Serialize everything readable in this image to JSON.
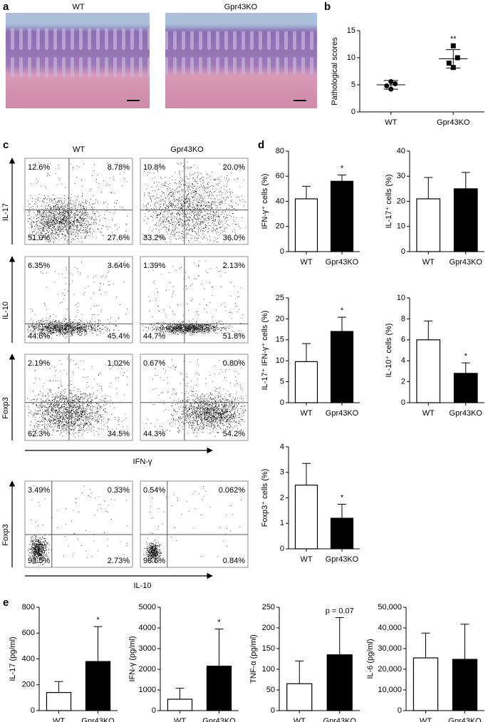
{
  "panel_labels": [
    "a",
    "b",
    "c",
    "d",
    "e"
  ],
  "histology": {
    "labels": [
      "WT",
      "Gpr43KO"
    ]
  },
  "flow": {
    "columns": [
      "WT",
      "Gpr43KO"
    ],
    "rows": [
      {
        "label": "IL-17",
        "quadrants": [
          [
            "12.6%",
            "8.78%",
            "51.0%",
            "27.6%"
          ],
          [
            "10.8%",
            "20.0%",
            "33.2%",
            "36.0%"
          ]
        ]
      },
      {
        "label": "IL-10",
        "quadrants": [
          [
            "6.35%",
            "3.64%",
            "44.6%",
            "45.4%"
          ],
          [
            "1.39%",
            "2.13%",
            "44.7%",
            "51.8%"
          ]
        ]
      },
      {
        "label": "Foxp3",
        "quadrants": [
          [
            "2.19%",
            "1.02%",
            "62.3%",
            "34.5%"
          ],
          [
            "0.67%",
            "0.80%",
            "44.3%",
            "54.2%"
          ]
        ]
      },
      {
        "label": "Foxp3",
        "quadrants": [
          [
            "3.49%",
            "0.33%",
            "93.5%",
            "2.73%"
          ],
          [
            "0.54%",
            "0.062%",
            "98.6%",
            "0.84%"
          ]
        ]
      }
    ],
    "x_axis_labels": [
      "IFN-γ",
      "IL-10"
    ]
  },
  "chart_data": [
    {
      "type": "dot",
      "y_label": "Pathological scores",
      "categories": [
        "WT",
        "Gpr43KO"
      ],
      "markers": [
        "circle",
        "square"
      ],
      "points": [
        [
          4.2,
          4.8,
          5.2,
          5.6
        ],
        [
          8.2,
          9,
          10,
          12.2
        ]
      ],
      "means": [
        5,
        9.8
      ],
      "errors": [
        0.8,
        1.7
      ],
      "ylim": [
        0,
        15
      ],
      "yticks": [
        0,
        5,
        10,
        15
      ],
      "annotation": "**"
    },
    {
      "type": "bar",
      "y_label": "IFN-γ⁺ cells (%)",
      "categories": [
        "WT",
        "Gpr43KO"
      ],
      "colors": [
        "#ffffff",
        "#000000"
      ],
      "values": [
        42,
        56
      ],
      "errors": [
        10,
        5
      ],
      "ylim": [
        0,
        80
      ],
      "yticks": [
        0,
        20,
        40,
        60,
        80
      ],
      "annotation": "*"
    },
    {
      "type": "bar",
      "y_label": "IL-17⁺ cells (%)",
      "categories": [
        "WT",
        "Gpr43KO"
      ],
      "colors": [
        "#ffffff",
        "#000000"
      ],
      "values": [
        21,
        25
      ],
      "errors": [
        8.5,
        6.5
      ],
      "ylim": [
        0,
        40
      ],
      "yticks": [
        0,
        10,
        20,
        30,
        40
      ]
    },
    {
      "type": "bar",
      "y_label": "IL-17⁺ IFN-γ⁺ cells (%)",
      "categories": [
        "WT",
        "Gpr43KO"
      ],
      "colors": [
        "#ffffff",
        "#000000"
      ],
      "values": [
        9.8,
        17
      ],
      "errors": [
        4.3,
        3.4
      ],
      "ylim": [
        0,
        25
      ],
      "yticks": [
        0,
        5,
        10,
        15,
        20,
        25
      ],
      "annotation": "*"
    },
    {
      "type": "bar",
      "y_label": "IL-10⁺ cells (%)",
      "categories": [
        "WT",
        "Gpr43KO"
      ],
      "colors": [
        "#ffffff",
        "#000000"
      ],
      "values": [
        6,
        2.8
      ],
      "errors": [
        1.8,
        1
      ],
      "ylim": [
        0,
        10
      ],
      "yticks": [
        0,
        2,
        4,
        6,
        8,
        10
      ],
      "annotation": "*"
    },
    {
      "type": "bar",
      "y_label": "Foxp3⁺ cells (%)",
      "categories": [
        "WT",
        "Gpr43KO"
      ],
      "colors": [
        "#ffffff",
        "#000000"
      ],
      "values": [
        2.5,
        1.2
      ],
      "errors": [
        0.85,
        0.55
      ],
      "ylim": [
        0,
        4
      ],
      "yticks": [
        0,
        1,
        2,
        3,
        4
      ],
      "annotation": "*"
    },
    {
      "type": "bar",
      "y_label": "IL-17 (pg/ml)",
      "categories": [
        "WT",
        "Gpr43KO"
      ],
      "colors": [
        "#ffffff",
        "#000000"
      ],
      "values": [
        140,
        380
      ],
      "errors": [
        85,
        270
      ],
      "ylim": [
        0,
        800
      ],
      "yticks": [
        0,
        200,
        400,
        600,
        800
      ],
      "annotation": "*"
    },
    {
      "type": "bar",
      "y_label": "IFN-γ (pg/ml)",
      "categories": [
        "WT",
        "Gpr43KO"
      ],
      "colors": [
        "#ffffff",
        "#000000"
      ],
      "values": [
        550,
        2150
      ],
      "errors": [
        530,
        1800
      ],
      "ylim": [
        0,
        5000
      ],
      "yticks": [
        0,
        1000,
        2000,
        3000,
        4000,
        5000
      ],
      "annotation": "*"
    },
    {
      "type": "bar",
      "y_label": "TNF-α (pg/ml)",
      "categories": [
        "WT",
        "Gpr43KO"
      ],
      "colors": [
        "#ffffff",
        "#000000"
      ],
      "values": [
        65,
        135
      ],
      "errors": [
        55,
        90
      ],
      "ylim": [
        0,
        250
      ],
      "yticks": [
        0,
        50,
        100,
        150,
        200,
        250
      ],
      "annotation": "p = 0.07"
    },
    {
      "type": "bar",
      "y_label": "IL-6 (pg/ml)",
      "categories": [
        "WT",
        "Gpr43KO"
      ],
      "colors": [
        "#ffffff",
        "#000000"
      ],
      "values": [
        25500,
        24800
      ],
      "errors": [
        12000,
        17000
      ],
      "ylim": [
        0,
        50000
      ],
      "yticks": [
        0,
        {
          "value": 10000,
          "label": "10,000"
        },
        {
          "value": 20000,
          "label": "20,000"
        },
        {
          "value": 30000,
          "label": "30,000"
        },
        {
          "value": 40000,
          "label": "40,000"
        },
        {
          "value": 50000,
          "label": "50,000"
        }
      ]
    }
  ]
}
